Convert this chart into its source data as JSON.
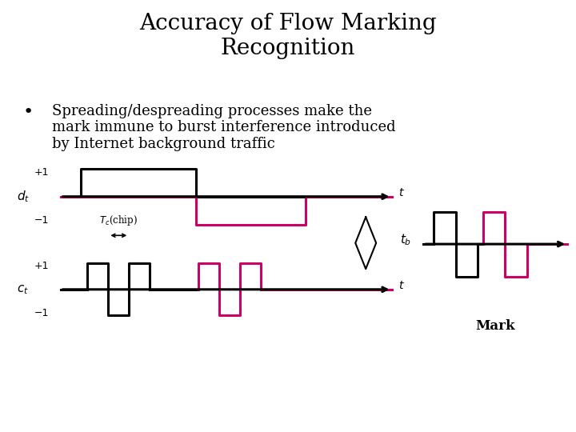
{
  "title": "Accuracy of Flow Marking\nRecognition",
  "bullet_text": "Spreading/despreading processes make the\nmark immune to burst interference introduced\nby Internet background traffic",
  "bg_color": "#ffffff",
  "black": "#000000",
  "pink": "#cc0066",
  "title_fontsize": 20,
  "bullet_fontsize": 13
}
